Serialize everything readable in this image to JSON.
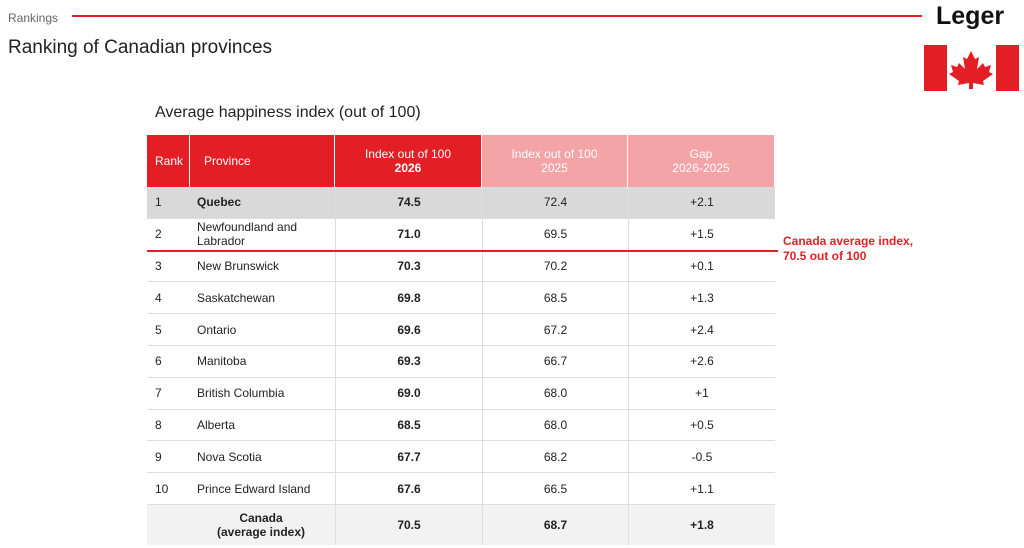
{
  "header": {
    "section": "Rankings",
    "title": "Ranking of Canadian provinces",
    "logo": "Leger"
  },
  "table": {
    "caption": "Average happiness index (out of 100)",
    "columns": [
      {
        "label": "Rank"
      },
      {
        "label": "Province"
      },
      {
        "label": "Index out of 100",
        "sub": "2026"
      },
      {
        "label": "Index out of 100",
        "sub": "2025"
      },
      {
        "label": "Gap",
        "sub": "2026-2025"
      }
    ],
    "rows": [
      [
        "1",
        "Quebec",
        "74.5",
        "72.4",
        "+2.1"
      ],
      [
        "2",
        "Newfoundland and Labrador",
        "71.0",
        "69.5",
        "+1.5"
      ],
      [
        "3",
        "New Brunswick",
        "70.3",
        "70.2",
        "+0.1"
      ],
      [
        "4",
        "Saskatchewan",
        "69.8",
        "68.5",
        "+1.3"
      ],
      [
        "5",
        "Ontario",
        "69.6",
        "67.2",
        "+2.4"
      ],
      [
        "6",
        "Manitoba",
        "69.3",
        "66.7",
        "+2.6"
      ],
      [
        "7",
        "British Columbia",
        "69.0",
        "68.0",
        "+1"
      ],
      [
        "8",
        "Alberta",
        "68.5",
        "68.0",
        "+0.5"
      ],
      [
        "9",
        "Nova Scotia",
        "67.7",
        "68.2",
        "-0.5"
      ],
      [
        "10",
        "Prince Edward Island",
        "67.6",
        "66.5",
        "+1.1"
      ]
    ],
    "total": {
      "label": [
        "Canada",
        "(average index)"
      ],
      "values": [
        "70.5",
        "68.7",
        "+1.8"
      ]
    }
  },
  "annotation": "Canada average index, 70.5 out of 100"
}
